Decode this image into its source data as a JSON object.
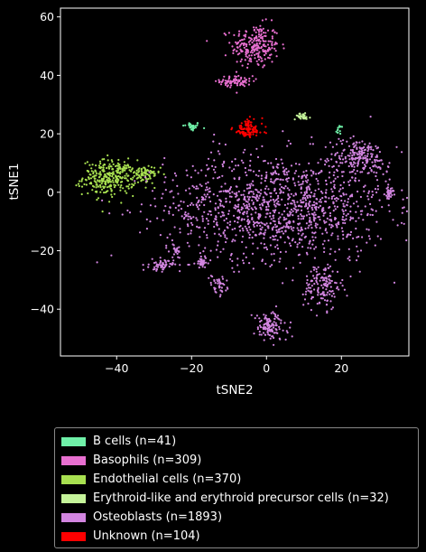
{
  "chart_data": {
    "type": "scatter",
    "title": "",
    "xlabel": "tSNE2",
    "ylabel": "tSNE1",
    "xlim": [
      -55,
      38
    ],
    "ylim": [
      -56,
      63
    ],
    "xticks": [
      -40,
      -20,
      0,
      20
    ],
    "yticks": [
      60,
      40,
      20,
      0,
      -20,
      -40
    ],
    "grid": false,
    "legend_position": "below",
    "series": [
      {
        "name": "B cells (n=41)",
        "color": "#6ff0a8",
        "count": 41,
        "clusters": [
          {
            "cx": -20,
            "cy": 22.5,
            "sx": 1.2,
            "sy": 0.8,
            "n": 29
          },
          {
            "cx": 19.5,
            "cy": 21.5,
            "sx": 0.6,
            "sy": 0.9,
            "n": 12
          }
        ]
      },
      {
        "name": "Basophils (n=309)",
        "color": "#e86fd0",
        "count": 309,
        "clusters": [
          {
            "cx": -3,
            "cy": 50,
            "sx": 3.2,
            "sy": 3.8,
            "n": 229
          },
          {
            "cx": -8,
            "cy": 38,
            "sx": 2.2,
            "sy": 0.9,
            "n": 80
          }
        ]
      },
      {
        "name": "Endothelial cells (n=370)",
        "color": "#a8e050",
        "count": 370,
        "clusters": [
          {
            "cx": -42,
            "cy": 5,
            "sx": 3.5,
            "sy": 3.0,
            "n": 290
          },
          {
            "cx": -33,
            "cy": 6,
            "sx": 2.3,
            "sy": 1.5,
            "n": 80
          }
        ]
      },
      {
        "name": "Erythroid-like and erythroid precursor cells (n=32)",
        "color": "#c5f49a",
        "count": 32,
        "clusters": [
          {
            "cx": 9.5,
            "cy": 26,
            "sx": 1.1,
            "sy": 0.5,
            "n": 32
          }
        ]
      },
      {
        "name": "Osteoblasts (n=1893)",
        "color": "#d285e0",
        "count": 1893,
        "clusters": [
          {
            "cx": 3,
            "cy": -5,
            "sx": 15,
            "sy": 9,
            "n": 1250
          },
          {
            "cx": 25,
            "cy": 12,
            "sx": 4,
            "sy": 3,
            "n": 190
          },
          {
            "cx": 15,
            "cy": -32,
            "sx": 2.5,
            "sy": 4,
            "n": 140
          },
          {
            "cx": 1,
            "cy": -46,
            "sx": 2.3,
            "sy": 2.5,
            "n": 120
          },
          {
            "cx": -28,
            "cy": -25,
            "sx": 1.6,
            "sy": 0.9,
            "n": 60
          },
          {
            "cx": -17,
            "cy": -24,
            "sx": 0.9,
            "sy": 1.0,
            "n": 40
          },
          {
            "cx": -13,
            "cy": -32,
            "sx": 1.2,
            "sy": 1.5,
            "n": 40
          },
          {
            "cx": 33,
            "cy": 0,
            "sx": 0.7,
            "sy": 0.8,
            "n": 30
          },
          {
            "cx": -24,
            "cy": -20,
            "sx": 1.0,
            "sy": 1.2,
            "n": 23
          }
        ]
      },
      {
        "name": "Unknown (n=104)",
        "color": "#ff0000",
        "count": 104,
        "clusters": [
          {
            "cx": -5,
            "cy": 21.5,
            "sx": 2.0,
            "sy": 1.7,
            "n": 104
          }
        ]
      }
    ]
  }
}
